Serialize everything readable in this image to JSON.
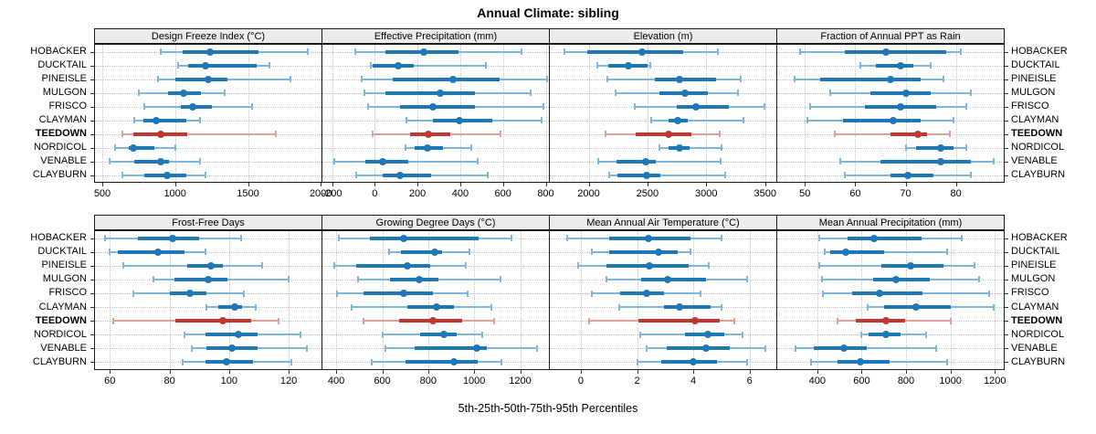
{
  "title": "Annual Climate: sibling",
  "caption": "5th-25th-50th-75th-95th Percentiles",
  "colors": {
    "blue_dark": "#1f78b4",
    "blue_light": "#7eb6dc",
    "red_dark": "#c13730",
    "red_light": "#dda09a",
    "header_bg": "#ececec",
    "grid": "#c3c3c3",
    "border": "#1a1a1a"
  },
  "chart_data": {
    "type": "scatter",
    "subtype": "percentile-interval-dotplot",
    "percentile_levels": [
      5,
      25,
      50,
      75,
      95
    ],
    "grid": "dotted",
    "legend_position": "none",
    "categories": [
      "HOBACKER",
      "DUCKTAIL",
      "PINEISLE",
      "MULGON",
      "FRISCO",
      "CLAYMAN",
      "TEEDOWN",
      "NORDICOL",
      "VENABLE",
      "CLAYBURN"
    ],
    "highlight": "TEEDOWN",
    "panels": [
      {
        "title": "Design Freeze Index (°C)",
        "row": 0,
        "col": 0,
        "xlim": [
          450,
          2005
        ],
        "ticks": [
          500,
          1000,
          1500,
          2000
        ],
        "values": [
          [
            900,
            1050,
            1240,
            1570,
            1910
          ],
          [
            1020,
            1090,
            1210,
            1560,
            1650
          ],
          [
            880,
            1000,
            1230,
            1360,
            1790
          ],
          [
            750,
            950,
            1060,
            1180,
            1340
          ],
          [
            790,
            1040,
            1120,
            1250,
            1530
          ],
          [
            720,
            780,
            870,
            1080,
            1170
          ],
          [
            640,
            710,
            900,
            1080,
            1690
          ],
          [
            590,
            680,
            715,
            860,
            1000
          ],
          [
            550,
            720,
            900,
            960,
            1170
          ],
          [
            640,
            790,
            945,
            1080,
            1210
          ]
        ]
      },
      {
        "title": "Effective Precipitation (mm)",
        "row": 0,
        "col": 1,
        "xlim": [
          -245,
          815
        ],
        "ticks": [
          -200,
          0,
          200,
          400,
          600,
          800
        ],
        "values": [
          [
            -90,
            50,
            230,
            390,
            685
          ],
          [
            -20,
            -10,
            110,
            180,
            520
          ],
          [
            -60,
            85,
            365,
            585,
            805
          ],
          [
            -50,
            50,
            305,
            470,
            730
          ],
          [
            -30,
            120,
            270,
            470,
            790
          ],
          [
            150,
            270,
            395,
            550,
            780
          ],
          [
            -10,
            165,
            250,
            355,
            590
          ],
          [
            145,
            185,
            245,
            320,
            450
          ],
          [
            -190,
            -45,
            35,
            155,
            480
          ],
          [
            -85,
            35,
            120,
            265,
            530
          ]
        ]
      },
      {
        "title": "Elevation (m)",
        "row": 0,
        "col": 2,
        "xlim": [
          1670,
          3595
        ],
        "ticks": [
          2000,
          2500,
          3000,
          3500
        ],
        "values": [
          [
            1790,
            1990,
            2450,
            2800,
            3100
          ],
          [
            2070,
            2170,
            2340,
            2500,
            2525
          ],
          [
            2160,
            2565,
            2770,
            3080,
            3290
          ],
          [
            2230,
            2600,
            2815,
            3010,
            3265
          ],
          [
            2395,
            2745,
            2915,
            3190,
            3490
          ],
          [
            2530,
            2675,
            2755,
            2840,
            3315
          ],
          [
            2140,
            2400,
            2675,
            2875,
            3115
          ],
          [
            2600,
            2675,
            2770,
            2855,
            3130
          ],
          [
            2080,
            2235,
            2485,
            2570,
            3120
          ],
          [
            2175,
            2245,
            2490,
            2610,
            3160
          ]
        ]
      },
      {
        "title": "Fraction of Annual PPT as Rain",
        "row": 0,
        "col": 3,
        "xlim": [
          44.5,
          89.5
        ],
        "ticks": [
          50,
          60,
          70,
          80
        ],
        "values": [
          [
            49,
            58,
            66,
            78,
            81
          ],
          [
            61,
            64,
            69,
            71.5,
            75
          ],
          [
            48,
            53,
            67,
            73,
            77.5
          ],
          [
            55,
            63,
            70,
            75,
            83
          ],
          [
            51,
            62,
            69,
            76,
            82
          ],
          [
            50.5,
            57.5,
            67.5,
            73,
            79.5
          ],
          [
            56,
            67,
            72.4,
            74.3,
            78.7
          ],
          [
            70,
            72,
            77,
            79.5,
            82
          ],
          [
            57,
            65,
            77,
            83,
            87.5
          ],
          [
            58,
            67,
            70.5,
            75.5,
            83
          ]
        ]
      },
      {
        "title": "Frost-Free Days",
        "row": 1,
        "col": 0,
        "xlim": [
          55,
          131
        ],
        "ticks": [
          60,
          80,
          100,
          120
        ],
        "values": [
          [
            58.5,
            69.5,
            81,
            90,
            104
          ],
          [
            60,
            62.5,
            76,
            85,
            92
          ],
          [
            64.5,
            86,
            94,
            98,
            111
          ],
          [
            74.5,
            81.5,
            93,
            99.5,
            120
          ],
          [
            68,
            80,
            87,
            92.5,
            105
          ],
          [
            92.5,
            96.5,
            102,
            104.5,
            109
          ],
          [
            61,
            82,
            98,
            107.5,
            116.5
          ],
          [
            85,
            92,
            103,
            109.5,
            124
          ],
          [
            87.5,
            92.5,
            101,
            109.5,
            126
          ],
          [
            84.5,
            92,
            99,
            108,
            121
          ]
        ]
      },
      {
        "title": "Growing Degree Days (°C)",
        "row": 1,
        "col": 1,
        "xlim": [
          340,
          1325
        ],
        "ticks": [
          400,
          600,
          800,
          1000,
          1200
        ],
        "values": [
          [
            410,
            545,
            695,
            1020,
            1160
          ],
          [
            630,
            680,
            830,
            860,
            980
          ],
          [
            390,
            485,
            710,
            810,
            965
          ],
          [
            495,
            635,
            760,
            845,
            1115
          ],
          [
            405,
            520,
            695,
            820,
            970
          ],
          [
            465,
            710,
            835,
            910,
            1075
          ],
          [
            520,
            675,
            820,
            950,
            1085
          ],
          [
            600,
            765,
            870,
            925,
            1035
          ],
          [
            615,
            740,
            1010,
            1055,
            1275
          ],
          [
            555,
            700,
            910,
            1015,
            1120
          ]
        ]
      },
      {
        "title": "Mean Annual Air Temperature (°C)",
        "row": 1,
        "col": 2,
        "xlim": [
          -1.1,
          6.95
        ],
        "ticks": [
          0,
          2,
          4,
          6
        ],
        "values": [
          [
            -0.5,
            1.0,
            2.4,
            3.9,
            5.0
          ],
          [
            0.4,
            1.0,
            2.75,
            3.45,
            3.9
          ],
          [
            -0.1,
            0.9,
            2.45,
            3.85,
            4.55
          ],
          [
            0.9,
            2.15,
            3.1,
            4.45,
            5.9
          ],
          [
            0.4,
            1.4,
            2.35,
            2.95,
            4.25
          ],
          [
            1.35,
            2.95,
            3.5,
            4.6,
            5.0
          ],
          [
            0.3,
            2.05,
            4.05,
            4.95,
            5.45
          ],
          [
            2.1,
            3.7,
            4.5,
            5.1,
            5.75
          ],
          [
            2.35,
            3.05,
            4.45,
            5.3,
            6.55
          ],
          [
            2.0,
            2.85,
            4.0,
            4.85,
            5.9
          ]
        ]
      },
      {
        "title": "Mean Annual Precipitation (mm)",
        "row": 1,
        "col": 3,
        "xlim": [
          220,
          1240
        ],
        "ticks": [
          400,
          600,
          800,
          1000,
          1200
        ],
        "values": [
          [
            410,
            535,
            655,
            870,
            1050
          ],
          [
            435,
            460,
            530,
            700,
            985
          ],
          [
            410,
            690,
            820,
            970,
            1110
          ],
          [
            420,
            650,
            755,
            905,
            1130
          ],
          [
            425,
            555,
            680,
            875,
            1175
          ],
          [
            625,
            700,
            845,
            1000,
            1195
          ],
          [
            490,
            575,
            710,
            795,
            1000
          ],
          [
            600,
            630,
            710,
            775,
            890
          ],
          [
            300,
            385,
            520,
            625,
            935
          ],
          [
            370,
            490,
            595,
            725,
            985
          ]
        ]
      }
    ]
  }
}
